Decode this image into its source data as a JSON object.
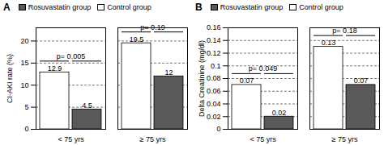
{
  "chart_data": [
    {
      "type": "bar",
      "title": "A",
      "y_label": "CI-AKI rate (%)",
      "categories": [
        "< 75 yrs",
        "≥ 75 yrs"
      ],
      "series": [
        {
          "name": "Control group",
          "color": "#ffffff",
          "values": [
            12.9,
            19.5
          ]
        },
        {
          "name": "Rosuvastatin group",
          "color": "#595959",
          "values": [
            4.5,
            12
          ]
        }
      ],
      "annotations": [
        {
          "category": "< 75 yrs",
          "text": "p= 0.005"
        },
        {
          "category": "≥ 75 yrs",
          "text": "p= 0.19"
        }
      ],
      "ylim": [
        0,
        23
      ],
      "yticks": [
        0,
        5,
        10,
        15,
        20
      ],
      "grid": true,
      "data_labels": true,
      "legend": "top"
    },
    {
      "type": "bar",
      "title": "B",
      "y_label": "Delta Creatinine (mg/dl)",
      "categories": [
        "< 75 yrs",
        "≥ 75 yrs"
      ],
      "series": [
        {
          "name": "Control group",
          "color": "#ffffff",
          "values": [
            0.07,
            0.13
          ]
        },
        {
          "name": "Rosuvastatin group",
          "color": "#595959",
          "values": [
            0.02,
            0.07
          ]
        }
      ],
      "annotations": [
        {
          "category": "< 75 yrs",
          "text": "p= 0.049"
        },
        {
          "category": "≥ 75 yrs",
          "text": "p= 0.18"
        }
      ],
      "ylim": [
        0,
        0.16
      ],
      "yticks": [
        0,
        0.02,
        0.04,
        0.06,
        0.08,
        0.1,
        0.12,
        0.14,
        0.16
      ],
      "grid": true,
      "data_labels": true,
      "legend": "top"
    }
  ]
}
